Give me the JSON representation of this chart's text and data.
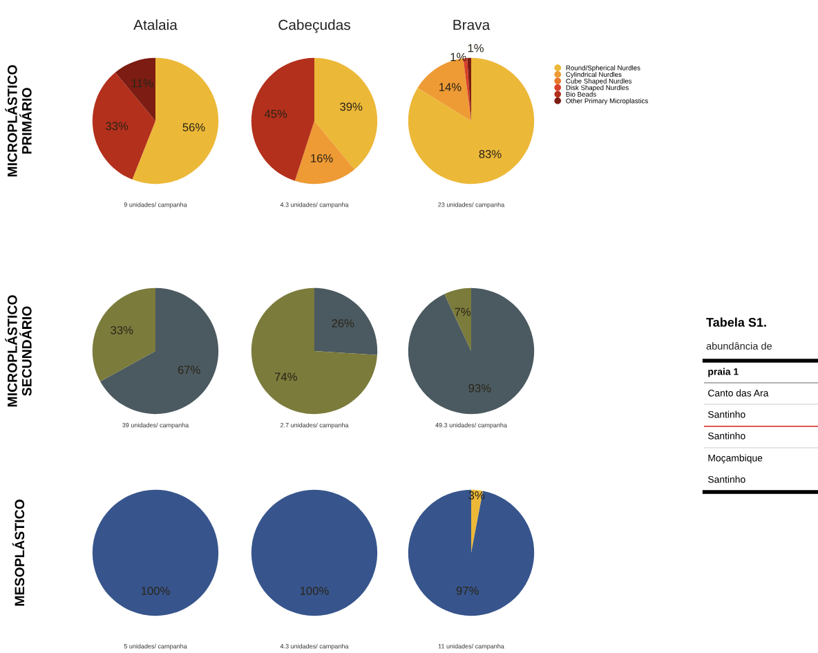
{
  "chart_data": [
    {
      "type": "pie",
      "title": "Atalaia",
      "ylabel": "MICROPLÁSTICO\nPRIMÁRIO",
      "categories": [
        null,
        null,
        null
      ],
      "values": [
        56,
        33,
        11
      ],
      "value_labels": [
        "56%",
        "33%",
        "11%"
      ],
      "colors": [
        "#ecb838",
        "#b3301c",
        "#7c1c12"
      ],
      "annotations": [
        "9 unidades/ campanha"
      ]
    },
    {
      "type": "pie",
      "title": "Cabeçudas",
      "categories": [
        null,
        null,
        null
      ],
      "values": [
        39,
        16,
        45
      ],
      "value_labels": [
        "39%",
        "16%",
        "45%"
      ],
      "colors": [
        "#ecb838",
        "#ee9a35",
        "#b3301c"
      ],
      "annotations": [
        "4.3 unidades/ campanha"
      ]
    },
    {
      "type": "pie",
      "title": "Brava",
      "categories": [
        "Round/Spherical Nurdles",
        "Cylindrical Nurdles",
        "Cube Shaped Nurdles",
        "Disk Shaped Nurdles",
        "Bio Beads",
        "Other Primary Microplastics"
      ],
      "values": [
        83,
        14,
        0,
        1,
        0,
        1
      ],
      "value_labels": [
        "83%",
        "14%",
        null,
        "1%",
        null,
        "1%"
      ],
      "colors": [
        "#ecb838",
        "#ee9a35",
        "#e8772c",
        "#d8412a",
        "#b3301c",
        "#7c1c12"
      ],
      "legend": "right",
      "annotations": [
        "23 unidades/ campanha"
      ]
    },
    {
      "type": "pie",
      "ylabel": "MICROPLÁSTICO\nSECUNDÁRIO",
      "categories": [
        null,
        null
      ],
      "values": [
        67,
        33
      ],
      "value_labels": [
        "67%",
        "33%"
      ],
      "colors": [
        "#4b5a60",
        "#7b7b3c"
      ],
      "annotations": [
        "39 unidades/ campanha"
      ]
    },
    {
      "type": "pie",
      "categories": [
        null,
        null
      ],
      "values": [
        26,
        74
      ],
      "value_labels": [
        "26%",
        "74%"
      ],
      "colors": [
        "#4b5a60",
        "#7b7b3c"
      ],
      "annotations": [
        "2.7 unidades/ campanha"
      ]
    },
    {
      "type": "pie",
      "categories": [
        null,
        null
      ],
      "values": [
        93,
        7
      ],
      "value_labels": [
        "93%",
        "7%"
      ],
      "colors": [
        "#4b5a60",
        "#7b7b3c"
      ],
      "annotations": [
        "49.3 unidades/ campanha"
      ]
    },
    {
      "type": "pie",
      "ylabel": "MESOPLÁSTICO",
      "categories": [
        null
      ],
      "values": [
        100
      ],
      "value_labels": [
        "100%"
      ],
      "colors": [
        "#37558c"
      ],
      "annotations": [
        "5 unidades/ campanha"
      ]
    },
    {
      "type": "pie",
      "categories": [
        null
      ],
      "values": [
        100
      ],
      "value_labels": [
        "100%"
      ],
      "colors": [
        "#37558c"
      ],
      "annotations": [
        "4.3 unidades/ campanha"
      ]
    },
    {
      "type": "pie",
      "categories": [
        null,
        null
      ],
      "values": [
        3,
        97
      ],
      "value_labels": [
        "3%",
        "97%"
      ],
      "colors": [
        "#ecb838",
        "#37558c"
      ],
      "annotations": [
        "11 unidades/ campanha"
      ]
    },
    {
      "type": "other",
      "title": "Tabela S1.",
      "subtitle": "abundância de",
      "annotations": [
        "praia 1",
        "Canto das Ara",
        "Santinho",
        "Santinho",
        "Moçambique",
        "Santinho"
      ]
    }
  ]
}
